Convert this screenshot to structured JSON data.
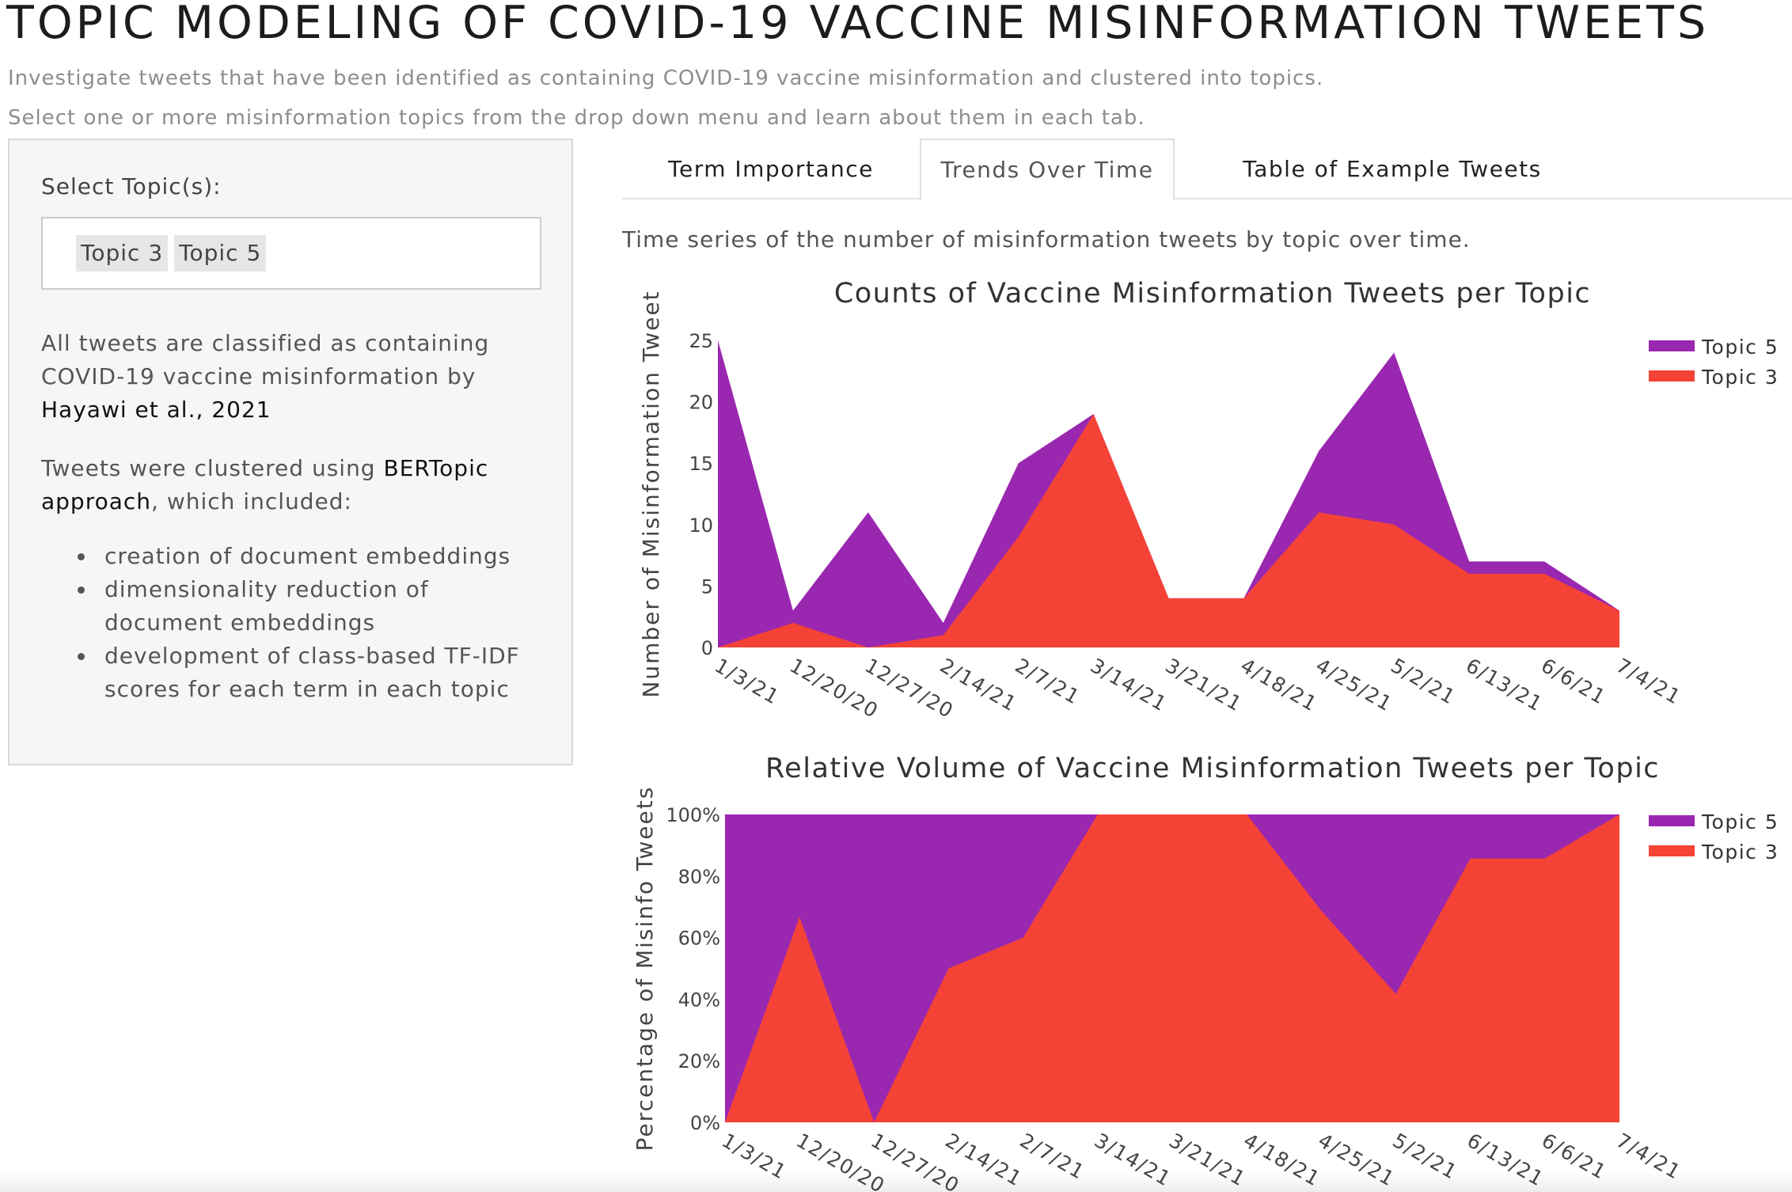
{
  "header": {
    "title": "TOPIC MODELING OF COVID-19 VACCINE MISINFORMATION TWEETS",
    "subtitle_1": "Investigate tweets that have been identified as containing COVID-19 vaccine misinformation and clustered into topics.",
    "subtitle_2": "Select one or more misinformation topics from the drop down menu and learn about them in each tab."
  },
  "sidebar": {
    "select_label": "Select Topic(s):",
    "selected_topics": [
      "Topic 3",
      "Topic 5"
    ],
    "para1_text": "All tweets are classified as containing COVID-19 vaccine misinformation by",
    "para1_link": "Hayawi et al., 2021",
    "para2_prefix": "Tweets were clustered using",
    "para2_link": "BERTopic approach",
    "para2_suffix": ", which included:",
    "items": [
      "creation of document embeddings",
      "dimensionality reduction of document embeddings",
      "development of class-based TF-IDF scores for each term in each topic"
    ]
  },
  "tabs": [
    {
      "label": "Term Importance",
      "active": false
    },
    {
      "label": "Trends Over Time",
      "active": true
    },
    {
      "label": "Table of Example Tweets",
      "active": false
    }
  ],
  "tab_description": "Time series of the number of misinformation tweets by topic over time.",
  "colors": {
    "topic5": "#9a27b0",
    "topic3": "#f44336",
    "axis_text": "#444444",
    "title_text": "#333333"
  },
  "chart_data": [
    {
      "type": "area",
      "stacked": true,
      "title": "Counts of Vaccine Misinformation Tweets per Topic",
      "xlabel": "",
      "ylabel": "Number of Misinformation Tweet",
      "categories": [
        "1/3/21",
        "12/20/20",
        "12/27/20",
        "2/14/21",
        "2/7/21",
        "3/14/21",
        "3/21/21",
        "4/18/21",
        "4/25/21",
        "5/2/21",
        "6/13/21",
        "6/6/21",
        "7/4/21"
      ],
      "ylim": [
        0,
        25
      ],
      "yticks": [
        0,
        5,
        10,
        15,
        20,
        25
      ],
      "ytick_labels": [
        "0",
        "5",
        "10",
        "15",
        "20",
        "25"
      ],
      "legend": "top-right",
      "grid": false,
      "series": [
        {
          "name": "Topic 3",
          "values": [
            0,
            2,
            0,
            1,
            9,
            19,
            4,
            4,
            11,
            10,
            6,
            6,
            3
          ]
        },
        {
          "name": "Topic 5",
          "values": [
            25,
            1,
            11,
            1,
            6,
            0,
            0,
            0,
            5,
            14,
            1,
            1,
            0
          ]
        }
      ]
    },
    {
      "type": "area",
      "stacked": true,
      "normalized": true,
      "title": "Relative Volume of Vaccine Misinformation Tweets per Topic",
      "xlabel": "",
      "ylabel": "Percentage of Misinfo Tweets",
      "categories": [
        "1/3/21",
        "12/20/20",
        "12/27/20",
        "2/14/21",
        "2/7/21",
        "3/14/21",
        "3/21/21",
        "4/18/21",
        "4/25/21",
        "5/2/21",
        "6/13/21",
        "6/6/21",
        "7/4/21"
      ],
      "ylim": [
        0,
        100
      ],
      "yticks": [
        0,
        20,
        40,
        60,
        80,
        100
      ],
      "ytick_labels": [
        "0%",
        "20%",
        "40%",
        "60%",
        "80%",
        "100%"
      ],
      "legend": "top-right",
      "grid": false,
      "series": [
        {
          "name": "Topic 3",
          "values": [
            0,
            66.7,
            0,
            50,
            60,
            100,
            100,
            100,
            68.75,
            41.7,
            85.7,
            85.7,
            100
          ]
        },
        {
          "name": "Topic 5",
          "values": [
            100,
            33.3,
            100,
            50,
            40,
            0,
            0,
            0,
            31.25,
            58.3,
            14.3,
            14.3,
            0
          ]
        }
      ]
    }
  ]
}
